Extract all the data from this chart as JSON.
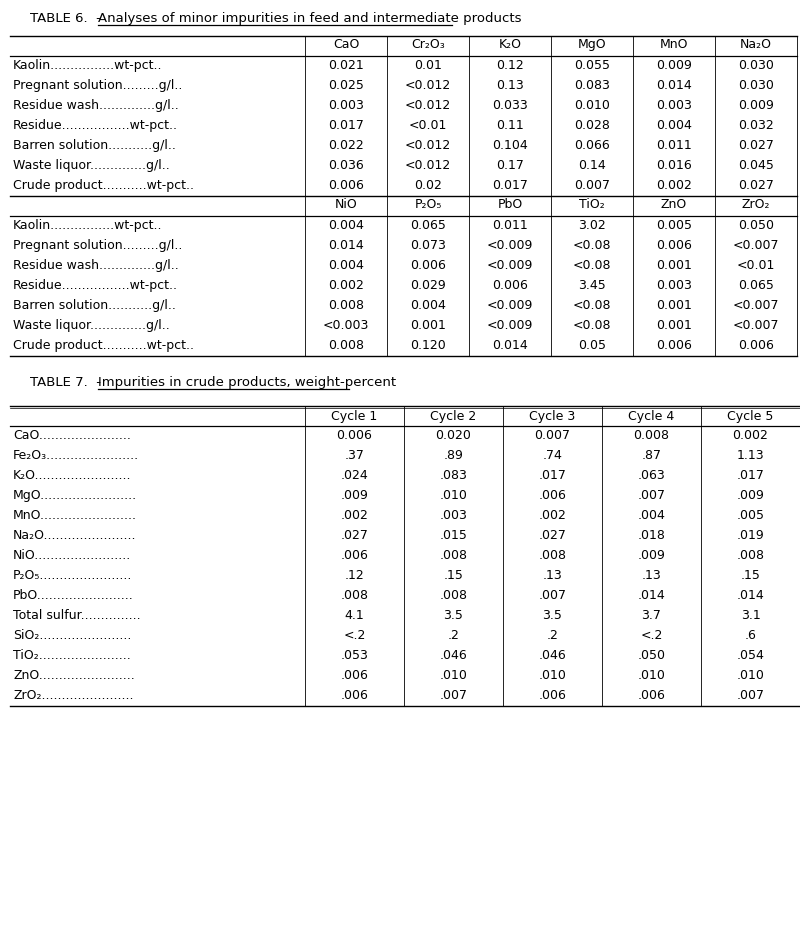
{
  "table6_title_plain": "TABLE 6.  - ",
  "table6_title_underlined": "Analyses of minor impurities in feed and intermediate products",
  "table7_title_plain": "TABLE 7.  - ",
  "table7_title_underlined": "Impurities in crude products, weight-percent",
  "table6_headers1": [
    "CaO",
    "Cr₂O₃",
    "K₂O",
    "MgO",
    "MnO",
    "Na₂O"
  ],
  "table6_rows1": [
    [
      "Kaolin................wt-pct..",
      "0.021",
      "0.01",
      "0.12",
      "0.055",
      "0.009",
      "0.030"
    ],
    [
      "Pregnant solution.........g/l..",
      "0.025",
      "<0.012",
      "0.13",
      "0.083",
      "0.014",
      "0.030"
    ],
    [
      "Residue wash..............g/l..",
      "0.003",
      "<0.012",
      "0.033",
      "0.010",
      "0.003",
      "0.009"
    ],
    [
      "Residue.................wt-pct..",
      "0.017",
      "<0.01",
      "0.11",
      "0.028",
      "0.004",
      "0.032"
    ],
    [
      "Barren solution...........g/l..",
      "0.022",
      "<0.012",
      "0.104",
      "0.066",
      "0.011",
      "0.027"
    ],
    [
      "Waste liquor..............g/l..",
      "0.036",
      "<0.012",
      "0.17",
      "0.14",
      "0.016",
      "0.045"
    ],
    [
      "Crude product...........wt-pct..",
      "0.006",
      "0.02",
      "0.017",
      "0.007",
      "0.002",
      "0.027"
    ]
  ],
  "table6_headers2": [
    "NiO",
    "P₂O₅",
    "PbO",
    "TiO₂",
    "ZnO",
    "ZrO₂"
  ],
  "table6_rows2": [
    [
      "Kaolin................wt-pct..",
      "0.004",
      "0.065",
      "0.011",
      "3.02",
      "0.005",
      "0.050"
    ],
    [
      "Pregnant solution.........g/l..",
      "0.014",
      "0.073",
      "<0.009",
      "<0.08",
      "0.006",
      "<0.007"
    ],
    [
      "Residue wash..............g/l..",
      "0.004",
      "0.006",
      "<0.009",
      "<0.08",
      "0.001",
      "<0.01"
    ],
    [
      "Residue.................wt-pct..",
      "0.002",
      "0.029",
      "0.006",
      "3.45",
      "0.003",
      "0.065"
    ],
    [
      "Barren solution...........g/l..",
      "0.008",
      "0.004",
      "<0.009",
      "<0.08",
      "0.001",
      "<0.007"
    ],
    [
      "Waste liquor..............g/l..",
      "<0.003",
      "0.001",
      "<0.009",
      "<0.08",
      "0.001",
      "<0.007"
    ],
    [
      "Crude product...........wt-pct..",
      "0.008",
      "0.120",
      "0.014",
      "0.05",
      "0.006",
      "0.006"
    ]
  ],
  "table7_headers": [
    "Cycle 1",
    "Cycle 2",
    "Cycle 3",
    "Cycle 4",
    "Cycle 5"
  ],
  "table7_rows": [
    [
      "CaO.......................",
      "0.006",
      "0.020",
      "0.007",
      "0.008",
      "0.002"
    ],
    [
      "Fe₂O₃.......................",
      ".37",
      ".89",
      ".74",
      ".87",
      "1.13"
    ],
    [
      "K₂O........................",
      ".024",
      ".083",
      ".017",
      ".063",
      ".017"
    ],
    [
      "MgO........................",
      ".009",
      ".010",
      ".006",
      ".007",
      ".009"
    ],
    [
      "MnO........................",
      ".002",
      ".003",
      ".002",
      ".004",
      ".005"
    ],
    [
      "Na₂O.......................",
      ".027",
      ".015",
      ".027",
      ".018",
      ".019"
    ],
    [
      "NiO........................",
      ".006",
      ".008",
      ".008",
      ".009",
      ".008"
    ],
    [
      "P₂O₅.......................",
      ".12",
      ".15",
      ".13",
      ".13",
      ".15"
    ],
    [
      "PbO........................",
      ".008",
      ".008",
      ".007",
      ".014",
      ".014"
    ],
    [
      "Total sulfur...............",
      "4.1",
      "3.5",
      "3.5",
      "3.7",
      "3.1"
    ],
    [
      "SiO₂.......................",
      "<.2",
      ".2",
      ".2",
      "<.2",
      ".6"
    ],
    [
      "TiO₂.......................",
      ".053",
      ".046",
      ".046",
      ".050",
      ".054"
    ],
    [
      "ZnO........................",
      ".006",
      ".010",
      ".010",
      ".010",
      ".010"
    ],
    [
      "ZrO₂.......................",
      ".006",
      ".007",
      ".006",
      ".006",
      ".007"
    ]
  ],
  "bg_color": "#ffffff",
  "text_color": "#000000",
  "font_size": 9.0,
  "title_font_size": 9.5,
  "mono_font": "Courier New"
}
